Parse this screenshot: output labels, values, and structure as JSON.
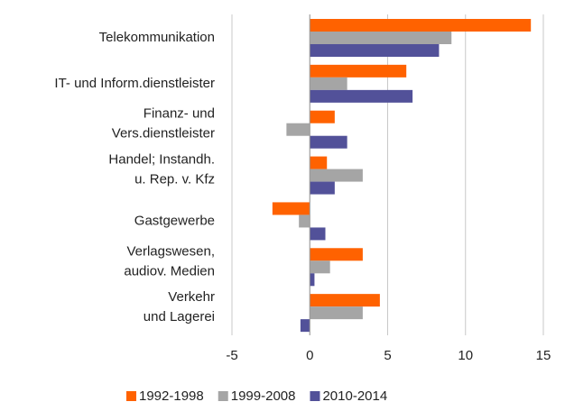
{
  "chart_data": {
    "type": "hbar",
    "categories": [
      [
        "Telekommunikation"
      ],
      [
        "IT- und Inform.dienstleister"
      ],
      [
        "Finanz- und",
        "Vers.dienstleister"
      ],
      [
        "Handel; Instandh.",
        "u. Rep. v. Kfz"
      ],
      [
        "Gastgewerbe"
      ],
      [
        "Verlagswesen,",
        "audiov. Medien"
      ],
      [
        "Verkehr",
        "und Lagerei"
      ]
    ],
    "series": [
      {
        "name": "1992-1998",
        "color": "#ff6200",
        "values": [
          14.2,
          6.2,
          1.6,
          1.1,
          -2.4,
          3.4,
          4.5
        ]
      },
      {
        "name": "1999-2008",
        "color": "#a5a5a5",
        "values": [
          9.1,
          2.4,
          -1.5,
          3.4,
          -0.7,
          1.3,
          3.4
        ]
      },
      {
        "name": "2010-2014",
        "color": "#525199",
        "values": [
          8.3,
          6.6,
          2.4,
          1.6,
          1.0,
          0.3,
          -0.6
        ]
      }
    ],
    "xlim": [
      -5,
      15
    ],
    "xticks": [
      -5,
      0,
      5,
      10,
      15
    ],
    "grid": true,
    "legend": "bottom"
  }
}
